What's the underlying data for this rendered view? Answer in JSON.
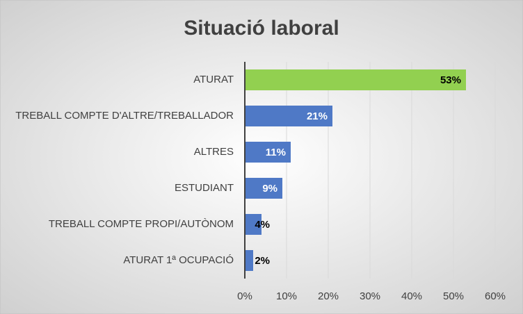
{
  "chart_data": {
    "type": "hbar",
    "title": "Situació laboral",
    "categories": [
      "ATURAT",
      "TREBALL COMPTE D'ALTRE/TREBALLADOR",
      "ALTRES",
      "ESTUDIANT",
      "TREBALL COMPTE PROPI/AUTÒNOM",
      "ATURAT 1ª OCUPACIÓ"
    ],
    "values": [
      53,
      21,
      11,
      9,
      4,
      2
    ],
    "value_labels": [
      "53%",
      "21%",
      "11%",
      "9%",
      "4%",
      "2%"
    ],
    "colors": [
      "#92d050",
      "#4f79c6",
      "#4f79c6",
      "#4f79c6",
      "#4f79c6",
      "#4f79c6"
    ],
    "value_label_colors": [
      "#000000",
      "#ffffff",
      "#ffffff",
      "#ffffff",
      "#000000",
      "#000000"
    ],
    "xlim": [
      0,
      60
    ],
    "xticks": [
      {
        "value": 0,
        "label": "0%"
      },
      {
        "value": 10,
        "label": "10%"
      },
      {
        "value": 20,
        "label": "20%"
      },
      {
        "value": 30,
        "label": "30%"
      },
      {
        "value": 40,
        "label": "40%"
      },
      {
        "value": 50,
        "label": "50%"
      },
      {
        "value": 60,
        "label": "60%"
      }
    ],
    "grid": true
  }
}
